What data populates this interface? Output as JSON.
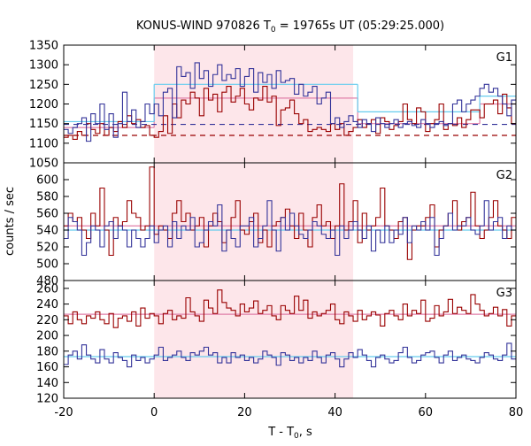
{
  "chart_data": {
    "type": "line",
    "title_main": "KONUS-WIND 970826 T",
    "title_sub": "0",
    "title_rest": " = 19765s UT (05:29:25.000)",
    "xlabel_main": "T - T",
    "xlabel_sub": "0",
    "xlabel_rest": ", s",
    "ylabel": "counts / sec",
    "xlim": [
      -20,
      80
    ],
    "xticks": [
      "-20",
      "0",
      "20",
      "40",
      "60",
      "80"
    ],
    "highlight_interval": [
      0,
      44
    ],
    "colors": {
      "series_red": "#990000",
      "series_blue": "#333399",
      "fit_pink": "#e07fa8",
      "fit_cyan": "#66ccee",
      "highlight": "#fde6ea"
    },
    "panels": [
      {
        "label": "G1",
        "ylim": [
          1050,
          1350
        ],
        "yticks": [
          "1050",
          "1100",
          "1150",
          "1200",
          "1250",
          "1300",
          "1350"
        ],
        "dashed_levels": {
          "red": 1120,
          "blue": 1148
        },
        "fit_levels": {
          "cyan": [
            {
              "x": [
                -20,
                0
              ],
              "y": 1155
            },
            {
              "x": [
                0,
                45
              ],
              "y": 1250
            },
            {
              "x": [
                45,
                72
              ],
              "y": 1180
            },
            {
              "x": [
                72,
                80
              ],
              "y": 1220
            }
          ],
          "pink": [
            {
              "x": [
                -20,
                0
              ],
              "y": 1140
            },
            {
              "x": [
                0,
                45
              ],
              "y": 1215
            },
            {
              "x": [
                45,
                72
              ],
              "y": 1150
            },
            {
              "x": [
                72,
                80
              ],
              "y": 1200
            }
          ]
        },
        "red": [
          1115,
          1120,
          1110,
          1130,
          1120,
          1150,
          1135,
          1125,
          1150,
          1120,
          1140,
          1130,
          1155,
          1140,
          1170,
          1150,
          1160,
          1140,
          1145,
          1120,
          1115,
          1130,
          1170,
          1125,
          1200,
          1165,
          1210,
          1200,
          1230,
          1215,
          1170,
          1240,
          1210,
          1225,
          1180,
          1230,
          1245,
          1205,
          1220,
          1240,
          1200,
          1185,
          1215,
          1210,
          1245,
          1205,
          1220,
          1145,
          1185,
          1190,
          1210,
          1175,
          1150,
          1160,
          1130,
          1135,
          1140,
          1135,
          1130,
          1150,
          1135,
          1150,
          1120,
          1130,
          1140,
          1160,
          1140,
          1150,
          1160,
          1125,
          1165,
          1155,
          1135,
          1145,
          1155,
          1200,
          1160,
          1150,
          1190,
          1180,
          1130,
          1150,
          1160,
          1200,
          1135,
          1150,
          1145,
          1165,
          1140,
          1160,
          1185,
          1185,
          1165,
          1200,
          1200,
          1210,
          1175,
          1225,
          1190,
          1150
        ],
        "blue": [
          1135,
          1125,
          1140,
          1150,
          1165,
          1105,
          1175,
          1150,
          1200,
          1135,
          1175,
          1115,
          1150,
          1230,
          1155,
          1185,
          1140,
          1155,
          1200,
          1175,
          1200,
          1170,
          1230,
          1240,
          1165,
          1295,
          1270,
          1280,
          1240,
          1305,
          1265,
          1285,
          1245,
          1275,
          1300,
          1260,
          1275,
          1265,
          1290,
          1245,
          1270,
          1290,
          1230,
          1280,
          1255,
          1275,
          1240,
          1285,
          1255,
          1260,
          1265,
          1225,
          1250,
          1220,
          1230,
          1245,
          1200,
          1215,
          1230,
          1150,
          1165,
          1140,
          1155,
          1170,
          1155,
          1140,
          1160,
          1150,
          1130,
          1165,
          1150,
          1140,
          1150,
          1160,
          1140,
          1150,
          1155,
          1145,
          1140,
          1160,
          1150,
          1140,
          1150,
          1155,
          1145,
          1150,
          1200,
          1210,
          1180,
          1200,
          1210,
          1220,
          1240,
          1250,
          1230,
          1240,
          1220,
          1200,
          1170,
          1210
        ]
      },
      {
        "label": "G2",
        "ylim": [
          480,
          620
        ],
        "yticks": [
          "480",
          "500",
          "520",
          "540",
          "560",
          "580",
          "600"
        ],
        "fit_levels": {
          "cyan": [
            {
              "x": [
                -20,
                80
              ],
              "y": 540
            }
          ],
          "pink": [
            {
              "x": [
                -20,
                80
              ],
              "y": 545
            }
          ]
        },
        "red": [
          545,
          560,
          550,
          555,
          540,
          530,
          560,
          545,
          590,
          540,
          510,
          555,
          545,
          550,
          575,
          560,
          555,
          540,
          545,
          615,
          535,
          545,
          540,
          530,
          560,
          575,
          550,
          560,
          540,
          545,
          555,
          520,
          545,
          560,
          550,
          525,
          540,
          555,
          575,
          540,
          535,
          550,
          560,
          525,
          540,
          520,
          545,
          550,
          555,
          565,
          545,
          530,
          560,
          540,
          520,
          555,
          570,
          545,
          550,
          530,
          545,
          595,
          540,
          550,
          575,
          525,
          560,
          540,
          545,
          555,
          590,
          545,
          540,
          530,
          550,
          555,
          505,
          540,
          545,
          545,
          555,
          570,
          520,
          540,
          545,
          560,
          575,
          540,
          550,
          555,
          585,
          545,
          530,
          540,
          555,
          575,
          545,
          540,
          530,
          555
        ],
        "blue": [
          530,
          555,
          550,
          540,
          510,
          525,
          545,
          540,
          520,
          545,
          550,
          530,
          545,
          540,
          520,
          540,
          530,
          520,
          530,
          545,
          525,
          540,
          545,
          520,
          550,
          530,
          545,
          540,
          555,
          520,
          525,
          540,
          550,
          545,
          570,
          515,
          540,
          530,
          520,
          545,
          545,
          555,
          520,
          530,
          545,
          575,
          540,
          515,
          555,
          540,
          560,
          545,
          535,
          530,
          540,
          550,
          545,
          535,
          530,
          540,
          510,
          545,
          530,
          540,
          550,
          540,
          530,
          545,
          515,
          540,
          525,
          545,
          525,
          540,
          535,
          555,
          525,
          545,
          540,
          550,
          540,
          555,
          510,
          530,
          545,
          560,
          540,
          545,
          545,
          555,
          540,
          535,
          545,
          575,
          540,
          550,
          555,
          530,
          545,
          540
        ]
      },
      {
        "label": "G3",
        "ylim": [
          120,
          270
        ],
        "yticks": [
          "120",
          "140",
          "160",
          "180",
          "200",
          "220",
          "240",
          "260"
        ],
        "fit_levels": {
          "cyan": [
            {
              "x": [
                -20,
                80
              ],
              "y": 173
            }
          ],
          "pink": [
            {
              "x": [
                -20,
                80
              ],
              "y": 227
            }
          ]
        },
        "red": [
          225,
          215,
          230,
          220,
          215,
          225,
          222,
          230,
          220,
          215,
          228,
          210,
          222,
          225,
          218,
          230,
          212,
          235,
          222,
          228,
          225,
          215,
          228,
          232,
          220,
          225,
          222,
          248,
          230,
          225,
          218,
          245,
          235,
          228,
          258,
          242,
          235,
          232,
          225,
          240,
          230,
          235,
          244,
          228,
          232,
          238,
          225,
          220,
          238,
          232,
          228,
          250,
          232,
          245,
          222,
          230,
          225,
          228,
          232,
          240,
          220,
          215,
          230,
          225,
          218,
          232,
          220,
          225,
          230,
          226,
          212,
          228,
          232,
          225,
          220,
          240,
          225,
          232,
          228,
          245,
          218,
          222,
          238,
          225,
          230,
          246,
          228,
          236,
          232,
          228,
          252,
          240,
          232,
          225,
          228,
          236,
          225,
          233,
          212,
          225
        ],
        "blue": [
          163,
          175,
          180,
          170,
          188,
          175,
          170,
          165,
          182,
          170,
          165,
          178,
          172,
          168,
          160,
          175,
          168,
          172,
          165,
          170,
          175,
          185,
          168,
          172,
          175,
          180,
          172,
          168,
          178,
          175,
          180,
          185,
          175,
          178,
          165,
          172,
          165,
          178,
          172,
          175,
          168,
          172,
          165,
          170,
          180,
          175,
          172,
          162,
          178,
          175,
          168,
          172,
          165,
          172,
          168,
          180,
          172,
          165,
          175,
          178,
          170,
          160,
          170,
          178,
          172,
          182,
          175,
          168,
          160,
          172,
          175,
          170,
          165,
          168,
          178,
          185,
          172,
          165,
          168,
          175,
          178,
          180,
          172,
          165,
          175,
          180,
          168,
          172,
          175,
          170,
          168,
          165,
          172,
          178,
          175,
          170,
          168,
          175,
          190,
          170
        ]
      }
    ]
  }
}
